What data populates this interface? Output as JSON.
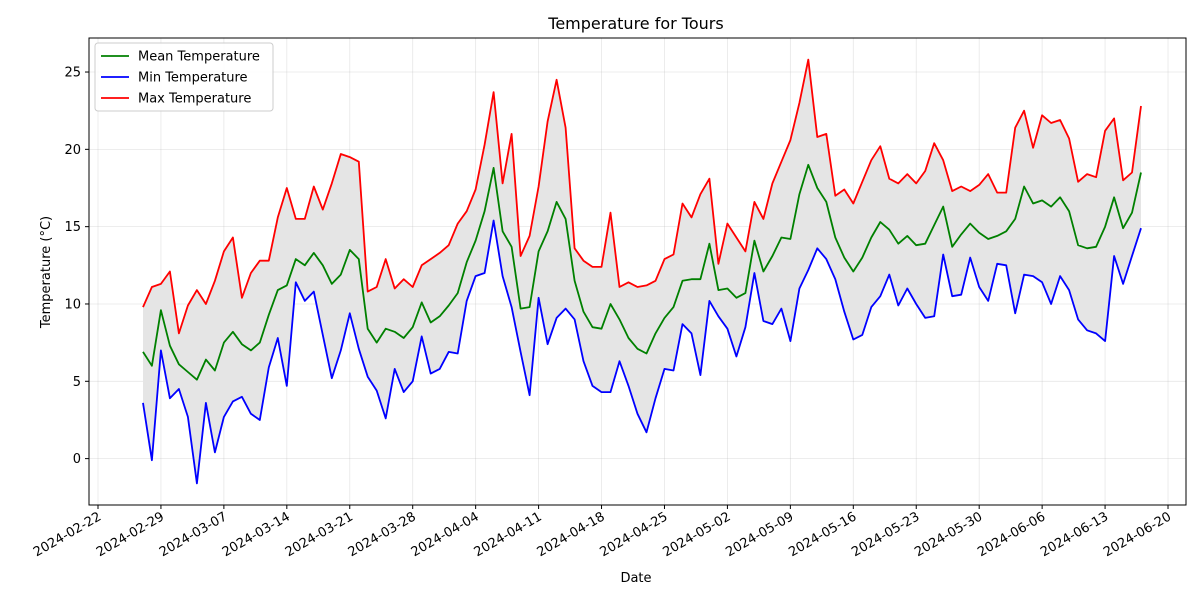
{
  "chart_data": {
    "type": "line",
    "title": "Temperature for Tours",
    "xlabel": "Date",
    "ylabel": "Temperature (°C)",
    "xlim": [
      "2024-02-21",
      "2024-06-22"
    ],
    "ylim": [
      -3,
      27.2
    ],
    "x_ticks": [
      "2024-02-22",
      "2024-02-29",
      "2024-03-07",
      "2024-03-14",
      "2024-03-21",
      "2024-03-28",
      "2024-04-04",
      "2024-04-11",
      "2024-04-18",
      "2024-04-25",
      "2024-05-02",
      "2024-05-09",
      "2024-05-16",
      "2024-05-23",
      "2024-05-30",
      "2024-06-06",
      "2024-06-13",
      "2024-06-20"
    ],
    "y_ticks": [
      0,
      5,
      10,
      15,
      20,
      25
    ],
    "grid": true,
    "legend_position": "top-left",
    "fill_between": {
      "lower": "Min Temperature",
      "upper": "Max Temperature",
      "color": "#e5e5e5"
    },
    "start_date": "2024-02-27",
    "series": [
      {
        "name": "Mean Temperature",
        "color": "#008000",
        "values": [
          6.9,
          6.0,
          9.6,
          7.3,
          6.1,
          5.6,
          5.1,
          6.4,
          5.7,
          7.5,
          8.2,
          7.4,
          7.0,
          7.5,
          9.3,
          10.9,
          11.2,
          12.9,
          12.5,
          13.3,
          12.5,
          11.3,
          11.9,
          13.5,
          12.9,
          8.4,
          7.5,
          8.4,
          8.2,
          7.8,
          8.5,
          10.1,
          8.8,
          9.2,
          9.9,
          10.7,
          12.7,
          14.1,
          16.0,
          18.8,
          14.7,
          13.7,
          9.7,
          9.8,
          13.4,
          14.7,
          16.6,
          15.5,
          11.5,
          9.5,
          8.5,
          8.4,
          10.0,
          9.0,
          7.8,
          7.1,
          6.8,
          8.1,
          9.1,
          9.8,
          11.5,
          11.6,
          11.6,
          13.9,
          10.9,
          11.0,
          10.4,
          10.7,
          14.1,
          12.1,
          13.1,
          14.3,
          14.2,
          17.1,
          19.0,
          17.5,
          16.6,
          14.3,
          13.0,
          12.1,
          13.0,
          14.3,
          15.3,
          14.8,
          13.9,
          14.4,
          13.8,
          13.9,
          15.1,
          16.3,
          13.7,
          14.5,
          15.2,
          14.6,
          14.2,
          14.4,
          14.7,
          15.5,
          17.6,
          16.5,
          16.7,
          16.3,
          16.9,
          16.0,
          13.8,
          13.6,
          13.7,
          15.0,
          16.9,
          14.9,
          15.9,
          18.5
        ]
      },
      {
        "name": "Min Temperature",
        "color": "#0000ff",
        "values": [
          3.6,
          -0.1,
          7.0,
          3.9,
          4.5,
          2.7,
          -1.6,
          3.6,
          0.4,
          2.7,
          3.7,
          4.0,
          2.9,
          2.5,
          5.9,
          7.8,
          4.7,
          11.4,
          10.2,
          10.8,
          8.0,
          5.2,
          7.0,
          9.4,
          7.1,
          5.3,
          4.4,
          2.6,
          5.8,
          4.3,
          5.0,
          7.9,
          5.5,
          5.8,
          6.9,
          6.8,
          10.2,
          11.8,
          12.0,
          15.4,
          11.8,
          9.8,
          6.9,
          4.1,
          10.4,
          7.4,
          9.1,
          9.7,
          9.0,
          6.3,
          4.7,
          4.3,
          4.3,
          6.3,
          4.7,
          2.9,
          1.7,
          3.9,
          5.8,
          5.7,
          8.7,
          8.1,
          5.4,
          10.2,
          9.2,
          8.4,
          6.6,
          8.5,
          12.0,
          8.9,
          8.7,
          9.7,
          7.6,
          11.0,
          12.2,
          13.6,
          12.9,
          11.6,
          9.5,
          7.7,
          8.0,
          9.8,
          10.5,
          11.9,
          9.9,
          11.0,
          10.0,
          9.1,
          9.2,
          13.2,
          10.5,
          10.6,
          13.0,
          11.1,
          10.2,
          12.6,
          12.5,
          9.4,
          11.9,
          11.8,
          11.4,
          10.0,
          11.8,
          10.9,
          9.0,
          8.3,
          8.1,
          7.6,
          13.1,
          11.3,
          13.1,
          14.9
        ]
      },
      {
        "name": "Max Temperature",
        "color": "#ff0000",
        "values": [
          9.8,
          11.1,
          11.3,
          12.1,
          8.1,
          9.9,
          10.9,
          10.0,
          11.5,
          13.4,
          14.3,
          10.4,
          12.0,
          12.8,
          12.8,
          15.6,
          17.5,
          15.5,
          15.5,
          17.6,
          16.1,
          17.8,
          19.7,
          19.5,
          19.2,
          10.8,
          11.1,
          12.9,
          11.0,
          11.6,
          11.1,
          12.5,
          12.9,
          13.3,
          13.8,
          15.2,
          16.0,
          17.4,
          20.3,
          23.7,
          17.8,
          21.0,
          13.1,
          14.4,
          17.6,
          21.8,
          24.5,
          21.4,
          13.6,
          12.8,
          12.4,
          12.4,
          15.9,
          11.1,
          11.4,
          11.1,
          11.2,
          11.5,
          12.9,
          13.2,
          16.5,
          15.6,
          17.1,
          18.1,
          12.6,
          15.2,
          14.3,
          13.4,
          16.6,
          15.5,
          17.8,
          19.2,
          20.6,
          23.0,
          25.8,
          20.8,
          21.0,
          17.0,
          17.4,
          16.5,
          17.9,
          19.3,
          20.2,
          18.1,
          17.8,
          18.4,
          17.8,
          18.6,
          20.4,
          19.3,
          17.3,
          17.6,
          17.3,
          17.7,
          18.4,
          17.2,
          17.2,
          21.4,
          22.5,
          20.1,
          22.2,
          21.7,
          21.9,
          20.7,
          17.9,
          18.4,
          18.2,
          21.2,
          22.0,
          18.0,
          18.5,
          22.8
        ]
      }
    ]
  }
}
